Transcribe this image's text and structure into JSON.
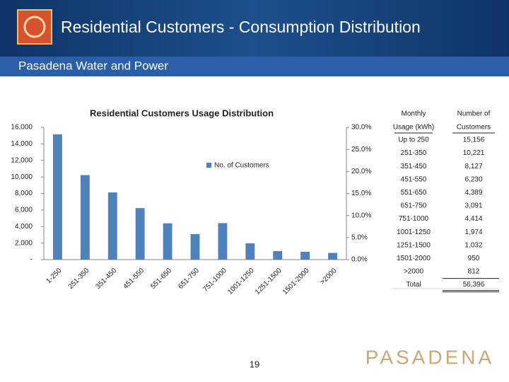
{
  "header": {
    "title": "Residential Customers - Consumption Distribution",
    "subtitle": "Pasadena Water and Power"
  },
  "chart_data": {
    "type": "bar",
    "title": "Residential Customers Usage Distribution",
    "categories": [
      "1-250",
      "251-350",
      "351-450",
      "451-550",
      "551-650",
      "651-750",
      "751-1000",
      "1001-1250",
      "1251-1500",
      "1501-2000",
      ">2000"
    ],
    "series": [
      {
        "name": "No. of Customers",
        "color": "#4f81bd",
        "values": [
          15156,
          10221,
          8127,
          6230,
          4389,
          3091,
          4414,
          1974,
          1032,
          950,
          812
        ]
      }
    ],
    "ylim": [
      0,
      16000
    ],
    "yticks": [
      {
        "value": 0,
        "label": "-"
      },
      {
        "value": 2000,
        "label": "2,000"
      },
      {
        "value": 4000,
        "label": "4,000"
      },
      {
        "value": 6000,
        "label": "6,000"
      },
      {
        "value": 8000,
        "label": "8,000"
      },
      {
        "value": 10000,
        "label": "10,000"
      },
      {
        "value": 12000,
        "label": "12,000"
      },
      {
        "value": 14000,
        "label": "14,000"
      },
      {
        "value": 16000,
        "label": "16,000"
      }
    ],
    "y2lim": [
      0,
      30
    ],
    "y2ticks": [
      {
        "value": 0,
        "label": "0.0%"
      },
      {
        "value": 5,
        "label": "5.0%"
      },
      {
        "value": 10,
        "label": "10.0%"
      },
      {
        "value": 15,
        "label": "15.0%"
      },
      {
        "value": 20,
        "label": "20.0%"
      },
      {
        "value": 25,
        "label": "25.0%"
      },
      {
        "value": 30,
        "label": "30.0%"
      }
    ],
    "grid": false,
    "legend": "top-right"
  },
  "table": {
    "header": [
      [
        "Monthly",
        "Usage (kWh)"
      ],
      [
        "Number of",
        "Customers"
      ]
    ],
    "rows": [
      [
        "Up to 250",
        "15,156"
      ],
      [
        "251-350",
        "10,221"
      ],
      [
        "351-450",
        "8,127"
      ],
      [
        "451-550",
        "6,230"
      ],
      [
        "551-650",
        "4,389"
      ],
      [
        "651-750",
        "3,091"
      ],
      [
        "751-1000",
        "4,414"
      ],
      [
        "1001-1250",
        "1,974"
      ],
      [
        "1251-1500",
        "1,032"
      ],
      [
        "1501-2000",
        "950"
      ],
      [
        ">2000",
        "812"
      ],
      [
        "Total",
        "56,396"
      ]
    ]
  },
  "footer": {
    "page_number": "19",
    "logo": "PASADENA"
  }
}
